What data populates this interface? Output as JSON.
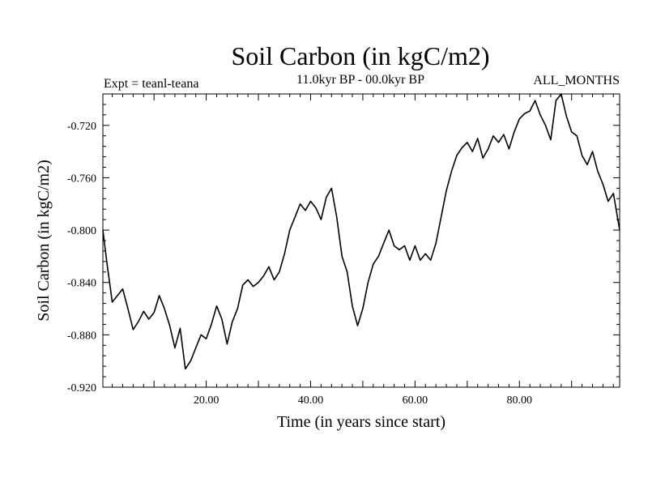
{
  "chart_data": {
    "type": "line",
    "title": "Soil Carbon (in kgC/m2)",
    "subtitle": "11.0kyr BP - 00.0kyr BP",
    "left_note": "Expt = teanl-teana",
    "right_note": "ALL_MONTHS",
    "xlabel": "Time (in years since start)",
    "ylabel": "Soil Carbon (in kgC/m2)",
    "xlim": [
      0.2,
      99.2
    ],
    "ylim": [
      -0.92,
      -0.696
    ],
    "xticks": [
      20,
      40,
      60,
      80
    ],
    "xtick_labels": [
      "20.00",
      "40.00",
      "60.00",
      "80.00"
    ],
    "yticks": [
      -0.92,
      -0.88,
      -0.84,
      -0.8,
      -0.76,
      -0.72
    ],
    "ytick_labels": [
      "-0.920",
      "-0.880",
      "-0.840",
      "-0.800",
      "-0.760",
      "-0.720"
    ],
    "grid": false,
    "colors": {
      "line": "#000000",
      "axes": "#000000",
      "background": "#ffffff"
    },
    "series": [
      {
        "x": [
          0.2,
          1.0,
          2.0,
          3.0,
          4.0,
          5.0,
          6.0,
          7.0,
          8.0,
          9.0,
          10.0,
          11.0,
          12.0,
          13.0,
          14.0,
          15.0,
          16.0,
          17.0,
          18.0,
          19.0,
          20.0,
          21.0,
          22.0,
          23.0,
          24.0,
          25.0,
          26.0,
          27.0,
          28.0,
          29.0,
          30.0,
          31.0,
          32.0,
          33.0,
          34.0,
          35.0,
          36.0,
          37.0,
          38.0,
          39.0,
          40.0,
          41.0,
          42.0,
          43.0,
          44.0,
          45.0,
          46.0,
          47.0,
          48.0,
          49.0,
          50.0,
          51.0,
          52.0,
          53.0,
          54.0,
          55.0,
          56.0,
          57.0,
          58.0,
          59.0,
          60.0,
          61.0,
          62.0,
          63.0,
          64.0,
          65.0,
          66.0,
          67.0,
          68.0,
          69.0,
          70.0,
          71.0,
          72.0,
          73.0,
          74.0,
          75.0,
          76.0,
          77.0,
          78.0,
          79.0,
          80.0,
          81.0,
          82.0,
          83.0,
          84.0,
          85.0,
          86.0,
          87.0,
          88.0,
          89.0,
          90.0,
          91.0,
          92.0,
          93.0,
          94.0,
          95.0,
          96.0,
          97.0,
          98.0,
          99.2
        ],
        "y": [
          -0.8,
          -0.826,
          -0.855,
          -0.85,
          -0.845,
          -0.86,
          -0.876,
          -0.87,
          -0.862,
          -0.868,
          -0.863,
          -0.85,
          -0.86,
          -0.873,
          -0.89,
          -0.875,
          -0.906,
          -0.9,
          -0.89,
          -0.88,
          -0.883,
          -0.872,
          -0.858,
          -0.868,
          -0.887,
          -0.87,
          -0.86,
          -0.842,
          -0.838,
          -0.843,
          -0.84,
          -0.835,
          -0.828,
          -0.838,
          -0.832,
          -0.818,
          -0.8,
          -0.79,
          -0.78,
          -0.785,
          -0.778,
          -0.783,
          -0.792,
          -0.775,
          -0.768,
          -0.79,
          -0.82,
          -0.832,
          -0.858,
          -0.873,
          -0.86,
          -0.84,
          -0.826,
          -0.82,
          -0.81,
          -0.8,
          -0.812,
          -0.815,
          -0.812,
          -0.823,
          -0.812,
          -0.823,
          -0.818,
          -0.823,
          -0.81,
          -0.79,
          -0.77,
          -0.755,
          -0.743,
          -0.737,
          -0.733,
          -0.74,
          -0.73,
          -0.745,
          -0.738,
          -0.728,
          -0.733,
          -0.727,
          -0.738,
          -0.725,
          -0.715,
          -0.711,
          -0.709,
          -0.701,
          -0.712,
          -0.72,
          -0.731,
          -0.701,
          -0.696,
          -0.713,
          -0.725,
          -0.728,
          -0.743,
          -0.75,
          -0.74,
          -0.755,
          -0.765,
          -0.778,
          -0.772,
          -0.8
        ]
      }
    ]
  }
}
